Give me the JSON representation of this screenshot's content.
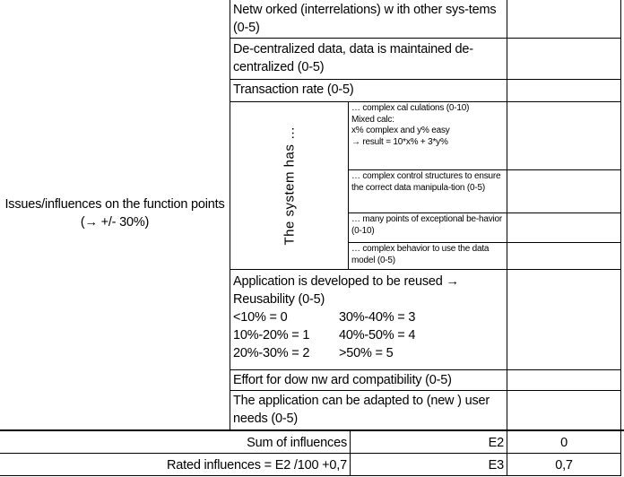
{
  "left_label": "Issues/influences on the function points (→ +/- 30%)",
  "rows": [
    {
      "label": "Netw orked (interrelations) w ith other sys-tems (0-5)",
      "value": ""
    },
    {
      "label": "De-centralized data, data is maintained de-centralized (0-5)",
      "value": ""
    },
    {
      "label": "Transaction rate (0-5)",
      "value": ""
    }
  ],
  "system_has": {
    "label": "The system has …",
    "items": [
      {
        "lines": [
          "… complex cal culations (0-10)",
          "Mixed calc:",
          "x% complex and y% easy",
          "→ result = 10*x% + 3*y%"
        ],
        "value": ""
      },
      {
        "lines": [
          "… complex control structures to ensure the correct data manipula-tion (0-5)"
        ],
        "value": ""
      },
      {
        "lines": [
          "… many points of exceptional be-havior (0-10)"
        ],
        "value": ""
      },
      {
        "lines": [
          "… complex behavior to use the data model (0-5)"
        ],
        "value": ""
      }
    ]
  },
  "reuse": {
    "title": "Application is developed to be reused → Reusability (0-5)",
    "scale": [
      [
        "<10% = 0",
        "30%-40% = 3"
      ],
      [
        "10%-20% = 1",
        "40%-50% = 4"
      ],
      [
        "20%-30% = 2",
        ">50% = 5"
      ]
    ],
    "value": ""
  },
  "rows2": [
    {
      "label": "Effort for dow nw ard compatibility (0-5)",
      "value": ""
    },
    {
      "label": "The application can be adapted to (new ) user needs (0-5)",
      "value": ""
    }
  ],
  "summary": [
    {
      "label": "Sum of influences",
      "cell": "E2",
      "value": "0"
    },
    {
      "label": "Rated influences = E2 /100 +0,7",
      "cell": "E3",
      "value": "0,7"
    }
  ]
}
